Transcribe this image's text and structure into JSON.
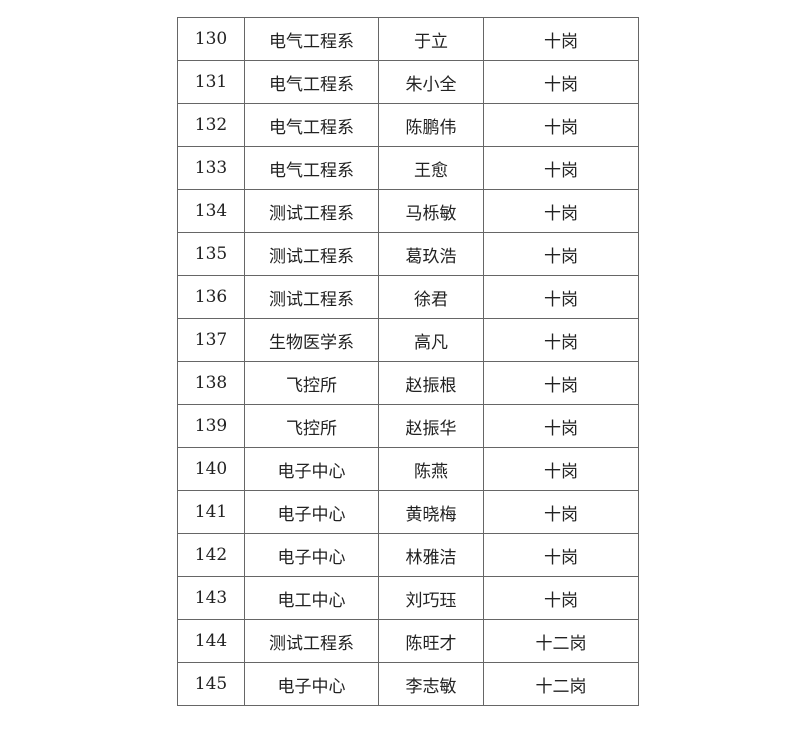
{
  "table": {
    "rows": [
      [
        "130",
        "电气工程系",
        "于立",
        "十岗"
      ],
      [
        "131",
        "电气工程系",
        "朱小全",
        "十岗"
      ],
      [
        "132",
        "电气工程系",
        "陈鹏伟",
        "十岗"
      ],
      [
        "133",
        "电气工程系",
        "王愈",
        "十岗"
      ],
      [
        "134",
        "测试工程系",
        "马栎敏",
        "十岗"
      ],
      [
        "135",
        "测试工程系",
        "葛玖浩",
        "十岗"
      ],
      [
        "136",
        "测试工程系",
        "徐君",
        "十岗"
      ],
      [
        "137",
        "生物医学系",
        "高凡",
        "十岗"
      ],
      [
        "138",
        "飞控所",
        "赵振根",
        "十岗"
      ],
      [
        "139",
        "飞控所",
        "赵振华",
        "十岗"
      ],
      [
        "140",
        "电子中心",
        "陈燕",
        "十岗"
      ],
      [
        "141",
        "电子中心",
        "黄晓梅",
        "十岗"
      ],
      [
        "142",
        "电子中心",
        "林雅洁",
        "十岗"
      ],
      [
        "143",
        "电工中心",
        "刘巧珏",
        "十岗"
      ],
      [
        "144",
        "测试工程系",
        "陈旺才",
        "十二岗"
      ],
      [
        "145",
        "电子中心",
        "李志敏",
        "十二岗"
      ]
    ]
  }
}
